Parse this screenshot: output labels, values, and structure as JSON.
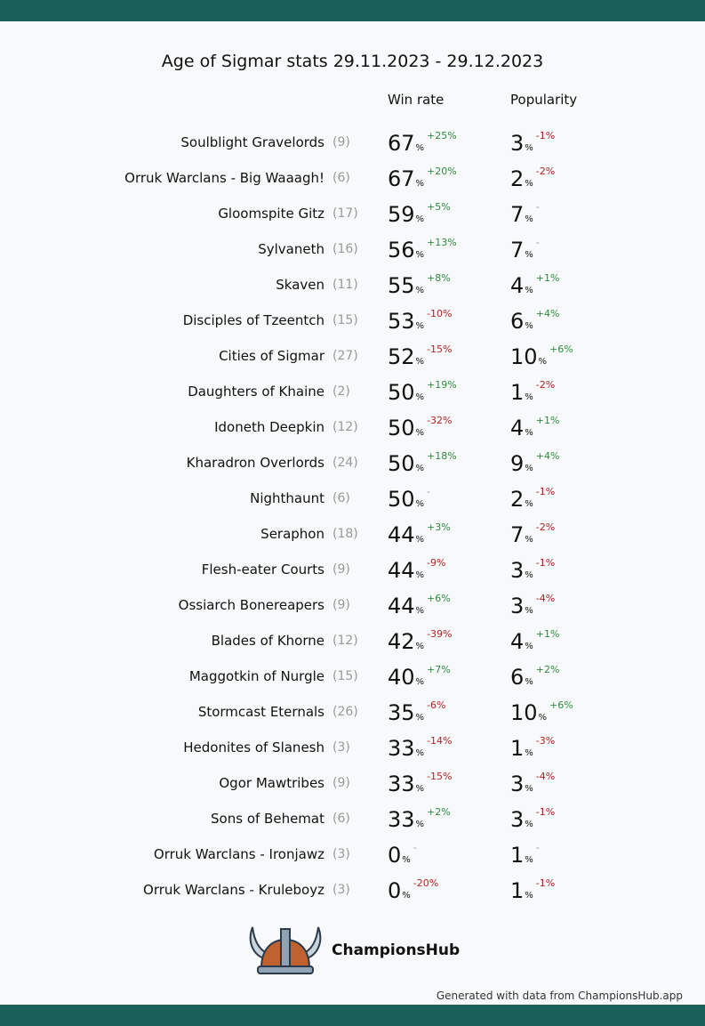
{
  "header": {
    "title": "Age of Sigmar stats 29.11.2023 - 29.12.2023",
    "win_rate": "Win rate",
    "popularity": "Popularity"
  },
  "unit": "%",
  "rows": [
    [
      "Soulblight Gravelords",
      "(9)",
      67,
      "+25%",
      3,
      "-1%"
    ],
    [
      "Orruk Warclans - Big Waaagh!",
      "(6)",
      67,
      "+20%",
      2,
      "-2%"
    ],
    [
      "Gloomspite Gitz",
      "(17)",
      59,
      "+5%",
      7,
      "-"
    ],
    [
      "Sylvaneth",
      "(16)",
      56,
      "+13%",
      7,
      "-"
    ],
    [
      "Skaven",
      "(11)",
      55,
      "+8%",
      4,
      "+1%"
    ],
    [
      "Disciples of Tzeentch",
      "(15)",
      53,
      "-10%",
      6,
      "+4%"
    ],
    [
      "Cities of Sigmar",
      "(27)",
      52,
      "-15%",
      10,
      "+6%"
    ],
    [
      "Daughters of Khaine",
      "(2)",
      50,
      "+19%",
      1,
      "-2%"
    ],
    [
      "Idoneth Deepkin",
      "(12)",
      50,
      "-32%",
      4,
      "+1%"
    ],
    [
      "Kharadron Overlords",
      "(24)",
      50,
      "+18%",
      9,
      "+4%"
    ],
    [
      "Nighthaunt",
      "(6)",
      50,
      "-",
      2,
      "-1%"
    ],
    [
      "Seraphon",
      "(18)",
      44,
      "+3%",
      7,
      "-2%"
    ],
    [
      "Flesh-eater Courts",
      "(9)",
      44,
      "-9%",
      3,
      "-1%"
    ],
    [
      "Ossiarch Bonereapers",
      "(9)",
      44,
      "+6%",
      3,
      "-4%"
    ],
    [
      "Blades of Khorne",
      "(12)",
      42,
      "-39%",
      4,
      "+1%"
    ],
    [
      "Maggotkin of Nurgle",
      "(15)",
      40,
      "+7%",
      6,
      "+2%"
    ],
    [
      "Stormcast Eternals",
      "(26)",
      35,
      "-6%",
      10,
      "+6%"
    ],
    [
      "Hedonites of Slanesh",
      "(3)",
      33,
      "-14%",
      1,
      "-3%"
    ],
    [
      "Ogor Mawtribes",
      "(9)",
      33,
      "-15%",
      3,
      "-4%"
    ],
    [
      "Sons of Behemat",
      "(6)",
      33,
      "+2%",
      3,
      "-1%"
    ],
    [
      "Orruk Warclans - Ironjawz",
      "(3)",
      0,
      "-",
      1,
      "-"
    ],
    [
      "Orruk Warclans - Kruleboyz",
      "(3)",
      0,
      "-20%",
      1,
      "-1%"
    ]
  ],
  "footer": {
    "brand": "ChampionsHub",
    "note": "Generated with data from ChampionsHub.app"
  }
}
